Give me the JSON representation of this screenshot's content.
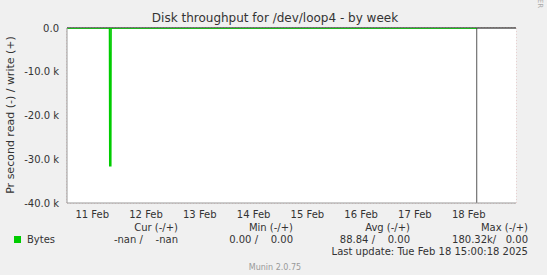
{
  "chart_data": {
    "type": "line",
    "title": "Disk throughput for /dev/loop4 - by week",
    "y_label": "Pr second read (-) / write (+)",
    "x": [
      11.03,
      11.82,
      11.825,
      11.845,
      11.85,
      18.65
    ],
    "series": [
      {
        "name": "Bytes",
        "color": "#00cc00",
        "values": [
          0,
          0,
          -31500,
          -31500,
          0,
          0
        ],
        "stats": [
          "-nan /    -nan",
          "0.00 /    0.00",
          "88.84 /    0.00",
          "180.32k/   0.00"
        ]
      }
    ],
    "stat_headers": [
      "Cur (-/+)",
      "Min (-/+)",
      "Avg (-/+)",
      "Max (-/+)"
    ],
    "xlim": [
      11.03,
      19.38
    ],
    "xticks": [
      {
        "value": 11.5,
        "label": "11 Feb"
      },
      {
        "value": 12.5,
        "label": "12 Feb"
      },
      {
        "value": 13.5,
        "label": "13 Feb"
      },
      {
        "value": 14.5,
        "label": "14 Feb"
      },
      {
        "value": 15.5,
        "label": "15 Feb"
      },
      {
        "value": 16.5,
        "label": "16 Feb"
      },
      {
        "value": 17.5,
        "label": "17 Feb"
      },
      {
        "value": 18.5,
        "label": "18 Feb"
      }
    ],
    "ylim": [
      -40000,
      0
    ],
    "yticks": [
      {
        "value": 0,
        "label": "0.0"
      },
      {
        "value": -10000,
        "label": "-10.0 k"
      },
      {
        "value": -20000,
        "label": "-20.0 k"
      },
      {
        "value": -30000,
        "label": "-30.0 k"
      },
      {
        "value": -40000,
        "label": "-40.0 k"
      }
    ],
    "grid": true,
    "vlines": [
      18.65
    ],
    "last_update": "Last update: Tue Feb 18 15:00:18 2025",
    "footer": "Munin 2.0.75",
    "watermark": "RRDTOOL / TOBI OETIKER"
  }
}
